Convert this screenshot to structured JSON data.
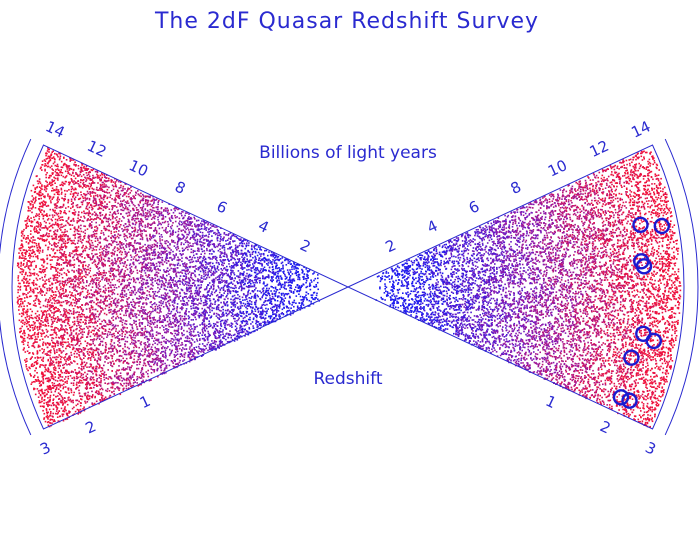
{
  "chart_data": {
    "type": "scatter",
    "title": "The 2dF Quasar Redshift Survey",
    "upper_axis_label": "Billions of light years",
    "lower_axis_label": "Redshift",
    "distance_ticks": [
      "2",
      "4",
      "6",
      "8",
      "10",
      "12",
      "14"
    ],
    "redshift_ticks": [
      "1",
      "2",
      "3"
    ],
    "distance_range_gly": [
      0,
      14
    ],
    "point_density": "increases with distance",
    "color_gradient": {
      "near": "#1a1af0",
      "mid": "#8a1ab0",
      "far": "#f0103a"
    },
    "highlighted_quasars": [
      {
        "side": "right",
        "distance_gly": 13.0,
        "angle_deg": 12
      },
      {
        "side": "right",
        "distance_gly": 13.9,
        "angle_deg": 11
      },
      {
        "side": "right",
        "distance_gly": 12.8,
        "angle_deg": 5
      },
      {
        "side": "right",
        "distance_gly": 12.9,
        "angle_deg": 4
      },
      {
        "side": "right",
        "distance_gly": 13.0,
        "angle_deg": -9
      },
      {
        "side": "right",
        "distance_gly": 13.5,
        "angle_deg": -10
      },
      {
        "side": "right",
        "distance_gly": 12.7,
        "angle_deg": -14
      },
      {
        "side": "right",
        "distance_gly": 12.8,
        "angle_deg": -22
      },
      {
        "side": "right",
        "distance_gly": 13.2,
        "angle_deg": -22
      }
    ]
  }
}
